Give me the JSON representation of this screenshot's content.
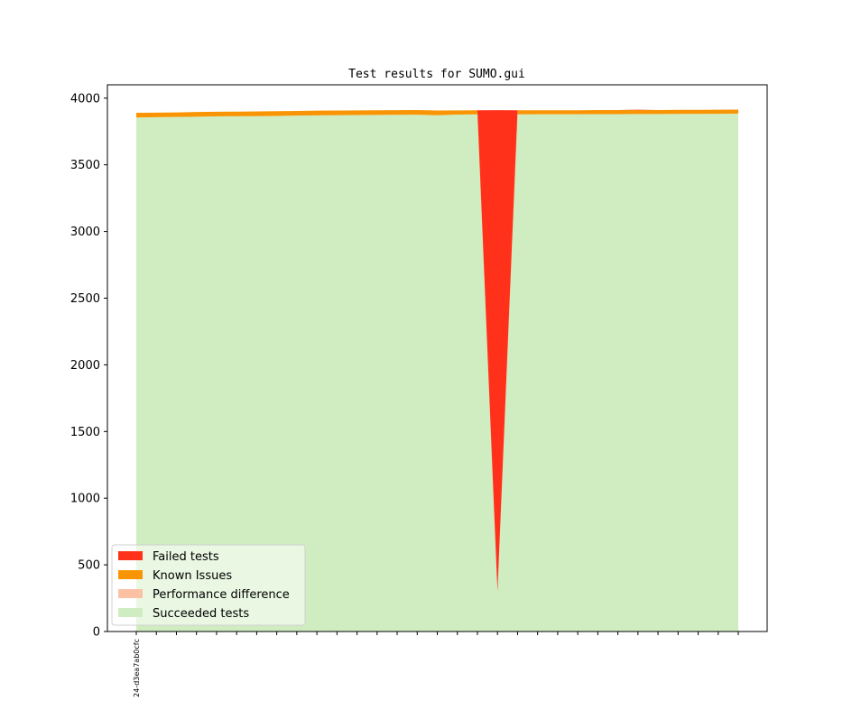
{
  "chart_data": {
    "type": "area",
    "title": "Test results for SUMO.gui",
    "xlabel": "",
    "ylabel": "",
    "ylim": [
      0,
      4100
    ],
    "yticks": [
      0,
      500,
      1000,
      1500,
      2000,
      2500,
      3000,
      3500,
      4000
    ],
    "x_tick_labels": [
      "24-d3ea7ab0cfc"
    ],
    "grid": false,
    "legend": "lower-left",
    "stacked": true,
    "num_points": 31,
    "series": [
      {
        "name": "Succeeded tests",
        "color": "#cfedc0",
        "values": [
          3855,
          3857,
          3859,
          3861,
          3863,
          3864,
          3865,
          3867,
          3869,
          3871,
          3872,
          3873,
          3874,
          3875,
          3876,
          3872,
          3877,
          3878,
          300,
          3878,
          3879,
          3879,
          3879,
          3880,
          3880,
          3881,
          3881,
          3882,
          3882,
          3883,
          3884
        ]
      },
      {
        "name": "Performance difference",
        "color": "#fac1a5",
        "values": [
          0,
          0,
          0,
          0,
          0,
          0,
          0,
          0,
          0,
          0,
          0,
          0,
          0,
          0,
          0,
          0,
          0,
          0,
          0,
          0,
          0,
          0,
          0,
          0,
          0,
          0,
          0,
          0,
          0,
          0,
          0
        ]
      },
      {
        "name": "Known Issues",
        "color": "#f99504",
        "values": [
          35,
          34,
          34,
          35,
          35,
          35,
          35,
          35,
          35,
          35,
          35,
          35,
          35,
          35,
          35,
          35,
          31,
          31,
          0,
          31,
          30,
          30,
          30,
          31,
          31,
          30,
          30,
          30,
          30,
          30,
          30
        ]
      },
      {
        "name": "Failed tests",
        "color": "#ff311b",
        "values": [
          0,
          0,
          0,
          0,
          0,
          0,
          0,
          0,
          0,
          0,
          0,
          0,
          0,
          0,
          0,
          0,
          0,
          0,
          3610,
          0,
          0,
          0,
          0,
          0,
          0,
          2,
          0,
          0,
          0,
          0,
          0
        ]
      }
    ],
    "legend_order": [
      "Failed tests",
      "Known Issues",
      "Performance difference",
      "Succeeded tests"
    ]
  }
}
